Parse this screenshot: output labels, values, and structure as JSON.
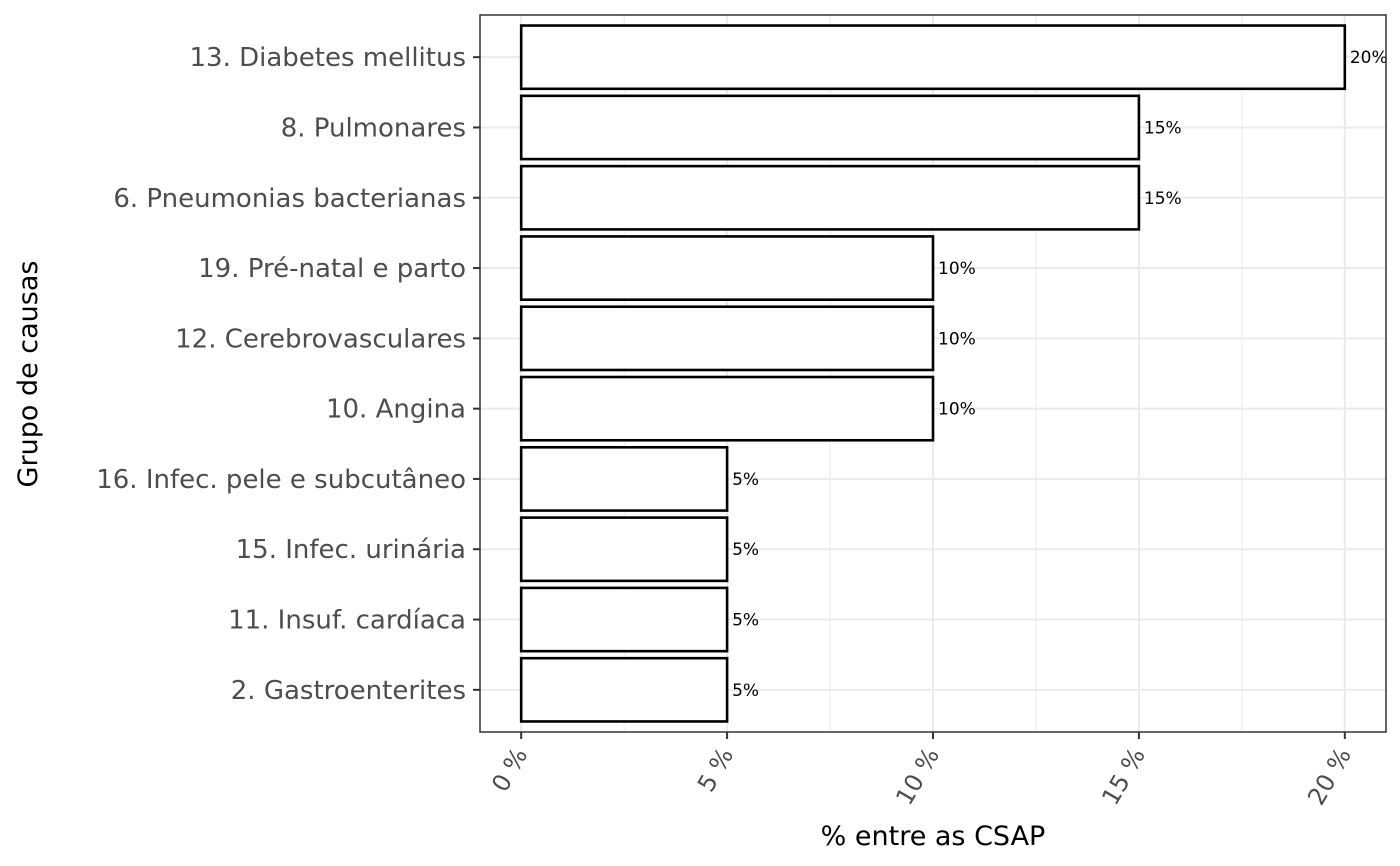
{
  "chart_data": {
    "type": "bar",
    "orientation": "horizontal",
    "categories": [
      "13. Diabetes mellitus",
      "8. Pulmonares",
      "6. Pneumonias bacterianas",
      "19. Pré-natal e parto",
      "12. Cerebrovasculares",
      "10. Angina",
      "16. Infec. pele e subcutâneo",
      "15. Infec. urinária",
      "11. Insuf. cardíaca",
      "2. Gastroenterites"
    ],
    "values": [
      20,
      15,
      15,
      10,
      10,
      10,
      5,
      5,
      5,
      5
    ],
    "data_labels": [
      "20%",
      "15%",
      "15%",
      "10%",
      "10%",
      "10%",
      "5%",
      "5%",
      "5%",
      "5%"
    ],
    "xlabel": "% entre as CSAP",
    "ylabel": "Grupo de causas",
    "xlim": [
      -1,
      21
    ],
    "x_ticks": [
      0,
      5,
      10,
      15,
      20
    ],
    "x_tick_labels": [
      "0 %",
      "5 %",
      "10 %",
      "15 %",
      "20 %"
    ],
    "grid": true,
    "bar_fill": "#ffffff",
    "bar_outline": "#000000"
  }
}
